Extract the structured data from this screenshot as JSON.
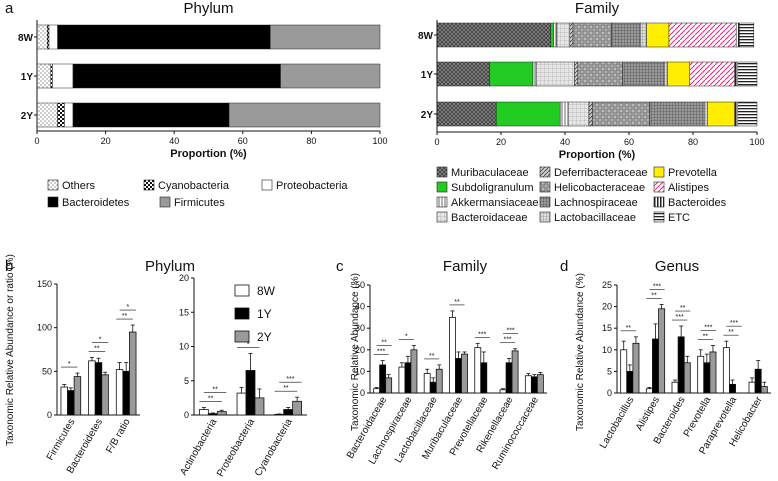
{
  "panels": {
    "a": "a",
    "b": "b",
    "c": "c",
    "d": "d"
  },
  "colors": {
    "black": "#000000",
    "gray": "#9a9a9a",
    "white": "#ffffff",
    "green": "#22cc22",
    "yellow": "#ffee00",
    "pink": "#ee2277",
    "dark": "#555555"
  },
  "chart_data": [
    {
      "id": "phylum-stack",
      "type": "bar",
      "orientation": "horizontal",
      "stacked": true,
      "title": "Phylum",
      "xlabel": "Proportion (%)",
      "xlim": [
        0,
        100
      ],
      "xticks": [
        "0",
        "20",
        "40",
        "60",
        "80",
        "100"
      ],
      "categories": [
        "8W",
        "1Y",
        "2Y"
      ],
      "series": [
        {
          "name": "Others",
          "pattern": "dots",
          "values": [
            3,
            4,
            6
          ]
        },
        {
          "name": "Cyanobacteria",
          "pattern": "checker",
          "values": [
            0.5,
            0.5,
            2
          ]
        },
        {
          "name": "Proteobacteria",
          "pattern": "white",
          "values": [
            2.5,
            6,
            2.5
          ]
        },
        {
          "name": "Bacteroidetes",
          "pattern": "black",
          "values": [
            62,
            60.5,
            45.5
          ]
        },
        {
          "name": "Firmicutes",
          "pattern": "gray",
          "values": [
            32,
            29,
            44
          ]
        }
      ],
      "legend": [
        "Others",
        "Cyanobacteria",
        "Proteobacteria",
        "Bacteroidetes",
        "Firmicutes"
      ]
    },
    {
      "id": "family-stack",
      "type": "bar",
      "orientation": "horizontal",
      "stacked": true,
      "title": "Family",
      "xlabel": "Proportion (%)",
      "xlim": [
        0,
        100
      ],
      "xticks": [
        "0",
        "20",
        "40",
        "60",
        "80",
        "100"
      ],
      "categories": [
        "8W",
        "1Y",
        "2Y"
      ],
      "series": [
        {
          "name": "Muribaculaceae",
          "pattern": "crosshatch",
          "values": [
            35.5,
            16.5,
            18.5
          ]
        },
        {
          "name": "Subdoligranulum",
          "pattern": "green",
          "values": [
            1,
            13.5,
            20
          ]
        },
        {
          "name": "Akkermansiaceae",
          "pattern": "vlines",
          "values": [
            1,
            1,
            2.5
          ]
        },
        {
          "name": "Bacteroidaceae",
          "pattern": "lightgrid",
          "values": [
            4,
            12,
            6.5
          ]
        },
        {
          "name": "Deferribacteraceae",
          "pattern": "diag",
          "values": [
            1,
            1,
            1
          ]
        },
        {
          "name": "Helicobacteraceae",
          "pattern": "boxes",
          "values": [
            12,
            14,
            18
          ]
        },
        {
          "name": "Lachnospiraceae",
          "pattern": "dgrid",
          "values": [
            9,
            13,
            17
          ]
        },
        {
          "name": "Lactobacillaceae",
          "pattern": "smallgrid",
          "values": [
            2,
            1,
            1
          ]
        },
        {
          "name": "Prevotella",
          "pattern": "yellow",
          "values": [
            7,
            7,
            8.5
          ]
        },
        {
          "name": "Alistipes",
          "pattern": "pink",
          "values": [
            21,
            14,
            0
          ]
        },
        {
          "name": "Bacteroides",
          "pattern": "vstripe",
          "values": [
            1,
            1,
            1
          ]
        },
        {
          "name": "ETC",
          "pattern": "hstripe",
          "values": [
            4.5,
            6,
            6
          ]
        }
      ],
      "legend_left": [
        "Muribaculaceae",
        "Subdoligranulum",
        "Akkermansiaceae",
        "Bacteroidaceae"
      ],
      "legend_mid": [
        "Deferribacteraceae",
        "Helicobacteraceae",
        "Lachnospiraceae",
        "Lactobacillaceae"
      ],
      "legend_right": [
        "Prevotella",
        "Alistipes",
        "Bacteroides",
        "ETC"
      ]
    },
    {
      "id": "b-phylum",
      "type": "bar",
      "title": "Phylum",
      "ylabel": "Taxonomic Relative Abundance or ratio (%)",
      "groups": [
        "8W",
        "1Y",
        "2Y"
      ],
      "left": {
        "ylim": [
          0,
          150
        ],
        "yticks": [
          "0",
          "50",
          "100",
          "150"
        ],
        "categories": [
          "Firmicutes",
          "Bacteroidetes",
          "F/B ratio"
        ],
        "series": [
          {
            "name": "8W",
            "values": [
              32,
              62,
              52
            ],
            "errors": [
              3,
              4,
              8
            ]
          },
          {
            "name": "1Y",
            "values": [
              28,
              60,
              50
            ],
            "errors": [
              3,
              5,
              10
            ]
          },
          {
            "name": "2Y",
            "values": [
              44,
              46,
              95
            ],
            "errors": [
              4,
              3,
              8
            ]
          }
        ],
        "signif": [
          [
            "*"
          ],
          [
            "**",
            "*"
          ],
          [
            "**",
            "*"
          ]
        ]
      },
      "right": {
        "ylim": [
          0,
          20
        ],
        "yticks": [
          "0",
          "5",
          "10",
          "15",
          "20"
        ],
        "categories": [
          "Actinobacteria",
          "Proteobacteria",
          "Cyanobacteria"
        ],
        "series": [
          {
            "name": "8W",
            "values": [
              0.8,
              3.2,
              0.1
            ],
            "errors": [
              0.3,
              0.8,
              0.05
            ]
          },
          {
            "name": "1Y",
            "values": [
              0.2,
              6.5,
              0.8
            ],
            "errors": [
              0.1,
              2.5,
              0.3
            ]
          },
          {
            "name": "2Y",
            "values": [
              0.5,
              2.5,
              2.0
            ],
            "errors": [
              0.2,
              1.3,
              0.6
            ]
          }
        ],
        "signif": [
          [
            "**",
            "**"
          ],
          [
            "*"
          ],
          [
            "**",
            "***"
          ]
        ]
      },
      "legend": [
        "8W",
        "1Y",
        "2Y"
      ]
    },
    {
      "id": "c-family",
      "type": "bar",
      "title": "Family",
      "ylabel": "Taxonomic Relative Abundance (%)",
      "ylim": [
        0,
        50
      ],
      "yticks": [
        "0",
        "10",
        "20",
        "30",
        "40",
        "50"
      ],
      "categories": [
        "Bacteroidaceae",
        "Lachnospiraceae",
        "Lactobacillaceae",
        "Muribaculaceae",
        "Prevotellaceae",
        "Rikenellaceae",
        "Ruminococcaceae"
      ],
      "series": [
        {
          "name": "8W",
          "values": [
            2,
            12,
            9,
            35,
            21,
            1.5,
            8
          ],
          "errors": [
            0.5,
            2,
            2,
            3,
            2,
            0.5,
            1
          ]
        },
        {
          "name": "1Y",
          "values": [
            13,
            14,
            5,
            16,
            14,
            14,
            7.5
          ],
          "errors": [
            2,
            3,
            2,
            3,
            5,
            2,
            1
          ]
        },
        {
          "name": "2Y",
          "values": [
            7,
            20,
            11,
            18,
            0,
            19.5,
            8.5
          ],
          "errors": [
            1.5,
            2,
            2,
            1,
            0,
            1,
            1
          ]
        }
      ],
      "signif": [
        [
          "***",
          "**"
        ],
        [
          "*"
        ],
        [
          "**"
        ],
        [
          "**"
        ],
        [
          "***"
        ],
        [
          "***",
          "***"
        ],
        []
      ]
    },
    {
      "id": "d-genus",
      "type": "bar",
      "title": "Genus",
      "ylabel": "Taxonomic Relative Abundance (%)",
      "ylim": [
        0,
        25
      ],
      "yticks": [
        "0",
        "5",
        "10",
        "15",
        "20",
        "25"
      ],
      "categories": [
        "Lactobacillus",
        "Alistipes",
        "Bacteroides",
        "Prevotella",
        "Paraprevotella",
        "Helicobacter"
      ],
      "series": [
        {
          "name": "8W",
          "values": [
            10,
            1,
            2.5,
            8.5,
            10.5,
            2.5
          ],
          "errors": [
            2,
            0.3,
            0.5,
            1.5,
            1.5,
            1
          ]
        },
        {
          "name": "1Y",
          "values": [
            5,
            12.5,
            13,
            7,
            2,
            5.5
          ],
          "errors": [
            1.5,
            3.5,
            2.5,
            2,
            1,
            2
          ]
        },
        {
          "name": "2Y",
          "values": [
            11.5,
            19.5,
            7,
            9.5,
            0,
            1.5
          ],
          "errors": [
            1.5,
            1,
            1.5,
            1.5,
            0,
            1
          ]
        }
      ],
      "signif": [
        [
          "**"
        ],
        [
          "**",
          "***"
        ],
        [
          "***",
          "**"
        ],
        [
          "**",
          "***"
        ],
        [
          "**",
          "***"
        ],
        []
      ]
    }
  ]
}
